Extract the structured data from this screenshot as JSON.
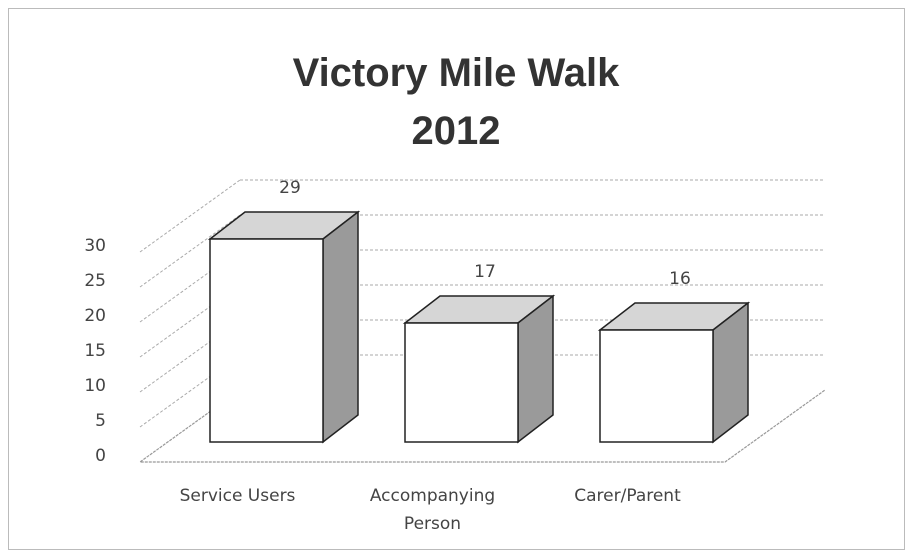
{
  "chart_data": {
    "type": "bar3d",
    "title": "Victory Mile Walk 2012",
    "categories": [
      "Service Users",
      "Accompanying Person",
      "Carer/Parent"
    ],
    "values": [
      29,
      17,
      16
    ],
    "ylim": [
      0,
      30
    ],
    "yticks": [
      0,
      5,
      10,
      15,
      20,
      25,
      30
    ],
    "grid": true,
    "colors": {
      "front": "#ffffff",
      "top": "#d6d6d6",
      "side": "#9a9a9a"
    }
  }
}
